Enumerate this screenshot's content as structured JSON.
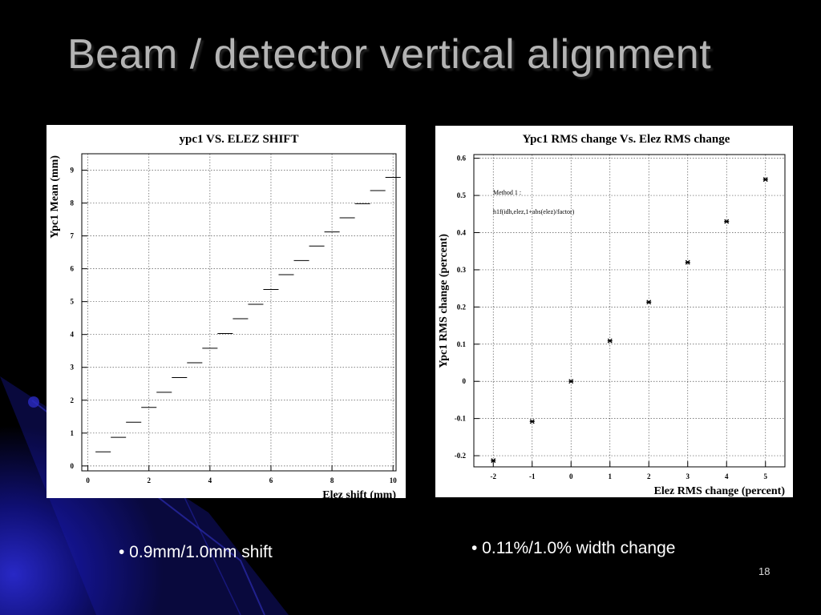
{
  "slide": {
    "title": "Beam / detector vertical alignment",
    "bullet_left": "• 0.9mm/1.0mm shift",
    "bullet_right": "• 0.11%/1.0% width change",
    "page_number": "18",
    "colors": {
      "background": "#000000",
      "title": "#b4b4b4",
      "accent": "#1a1aa0"
    }
  },
  "chart_data": [
    {
      "type": "step",
      "title": "ypc1 VS. ELEZ SHIFT",
      "xlabel": "Elez shift (mm)",
      "ylabel": "Ypc1 Mean (mm)",
      "xlim": [
        -0.2,
        10.1
      ],
      "ylim": [
        -0.15,
        9.5
      ],
      "xticks": [
        0,
        2,
        4,
        6,
        8,
        10
      ],
      "xtick_labels": [
        "0",
        "2",
        "4",
        "6",
        "8",
        "10"
      ],
      "yticks": [
        0,
        1,
        2,
        3,
        4,
        5,
        6,
        7,
        8,
        9
      ],
      "ytick_labels": [
        "0",
        "1",
        "2",
        "3",
        "4",
        "5",
        "6",
        "7",
        "8",
        "9"
      ],
      "grid": true,
      "bin_width": 0.5,
      "x": [
        0.5,
        1.0,
        1.5,
        2.0,
        2.5,
        3.0,
        3.5,
        4.0,
        4.5,
        5.0,
        5.5,
        6.0,
        6.5,
        7.0,
        7.5,
        8.0,
        8.5,
        9.0,
        9.5,
        10.0
      ],
      "y": [
        0.43,
        0.87,
        1.33,
        1.78,
        2.24,
        2.69,
        3.14,
        3.58,
        4.03,
        4.48,
        4.92,
        5.37,
        5.82,
        6.25,
        6.69,
        7.12,
        7.55,
        7.98,
        8.38,
        8.78
      ]
    },
    {
      "type": "scatter",
      "title": "Ypc1 RMS change Vs. Elez RMS change",
      "xlabel": "Elez RMS change (percent)",
      "ylabel": "Ypc1 RMS change (percent)",
      "xlim": [
        -2.5,
        5.5
      ],
      "ylim": [
        -0.23,
        0.61
      ],
      "xticks": [
        -2,
        -1,
        0,
        1,
        2,
        3,
        4,
        5
      ],
      "xtick_labels": [
        "-2",
        "-1",
        "0",
        "1",
        "2",
        "3",
        "4",
        "5"
      ],
      "yticks": [
        -0.2,
        -0.1,
        0,
        0.1,
        0.2,
        0.3,
        0.4,
        0.5,
        0.6
      ],
      "ytick_labels": [
        "-0.2",
        "-0.1",
        "0",
        "0.1",
        "0.2",
        "0.3",
        "0.4",
        "0.5",
        "0.6"
      ],
      "grid": true,
      "annotations": [
        "Method 1 :",
        "h1f(idh,elez,1+abs(elez)/factor)"
      ],
      "x": [
        -2,
        -1,
        0,
        1,
        2,
        3,
        4,
        5
      ],
      "y": [
        -0.213,
        -0.108,
        0.0,
        0.109,
        0.213,
        0.32,
        0.43,
        0.543
      ]
    }
  ]
}
